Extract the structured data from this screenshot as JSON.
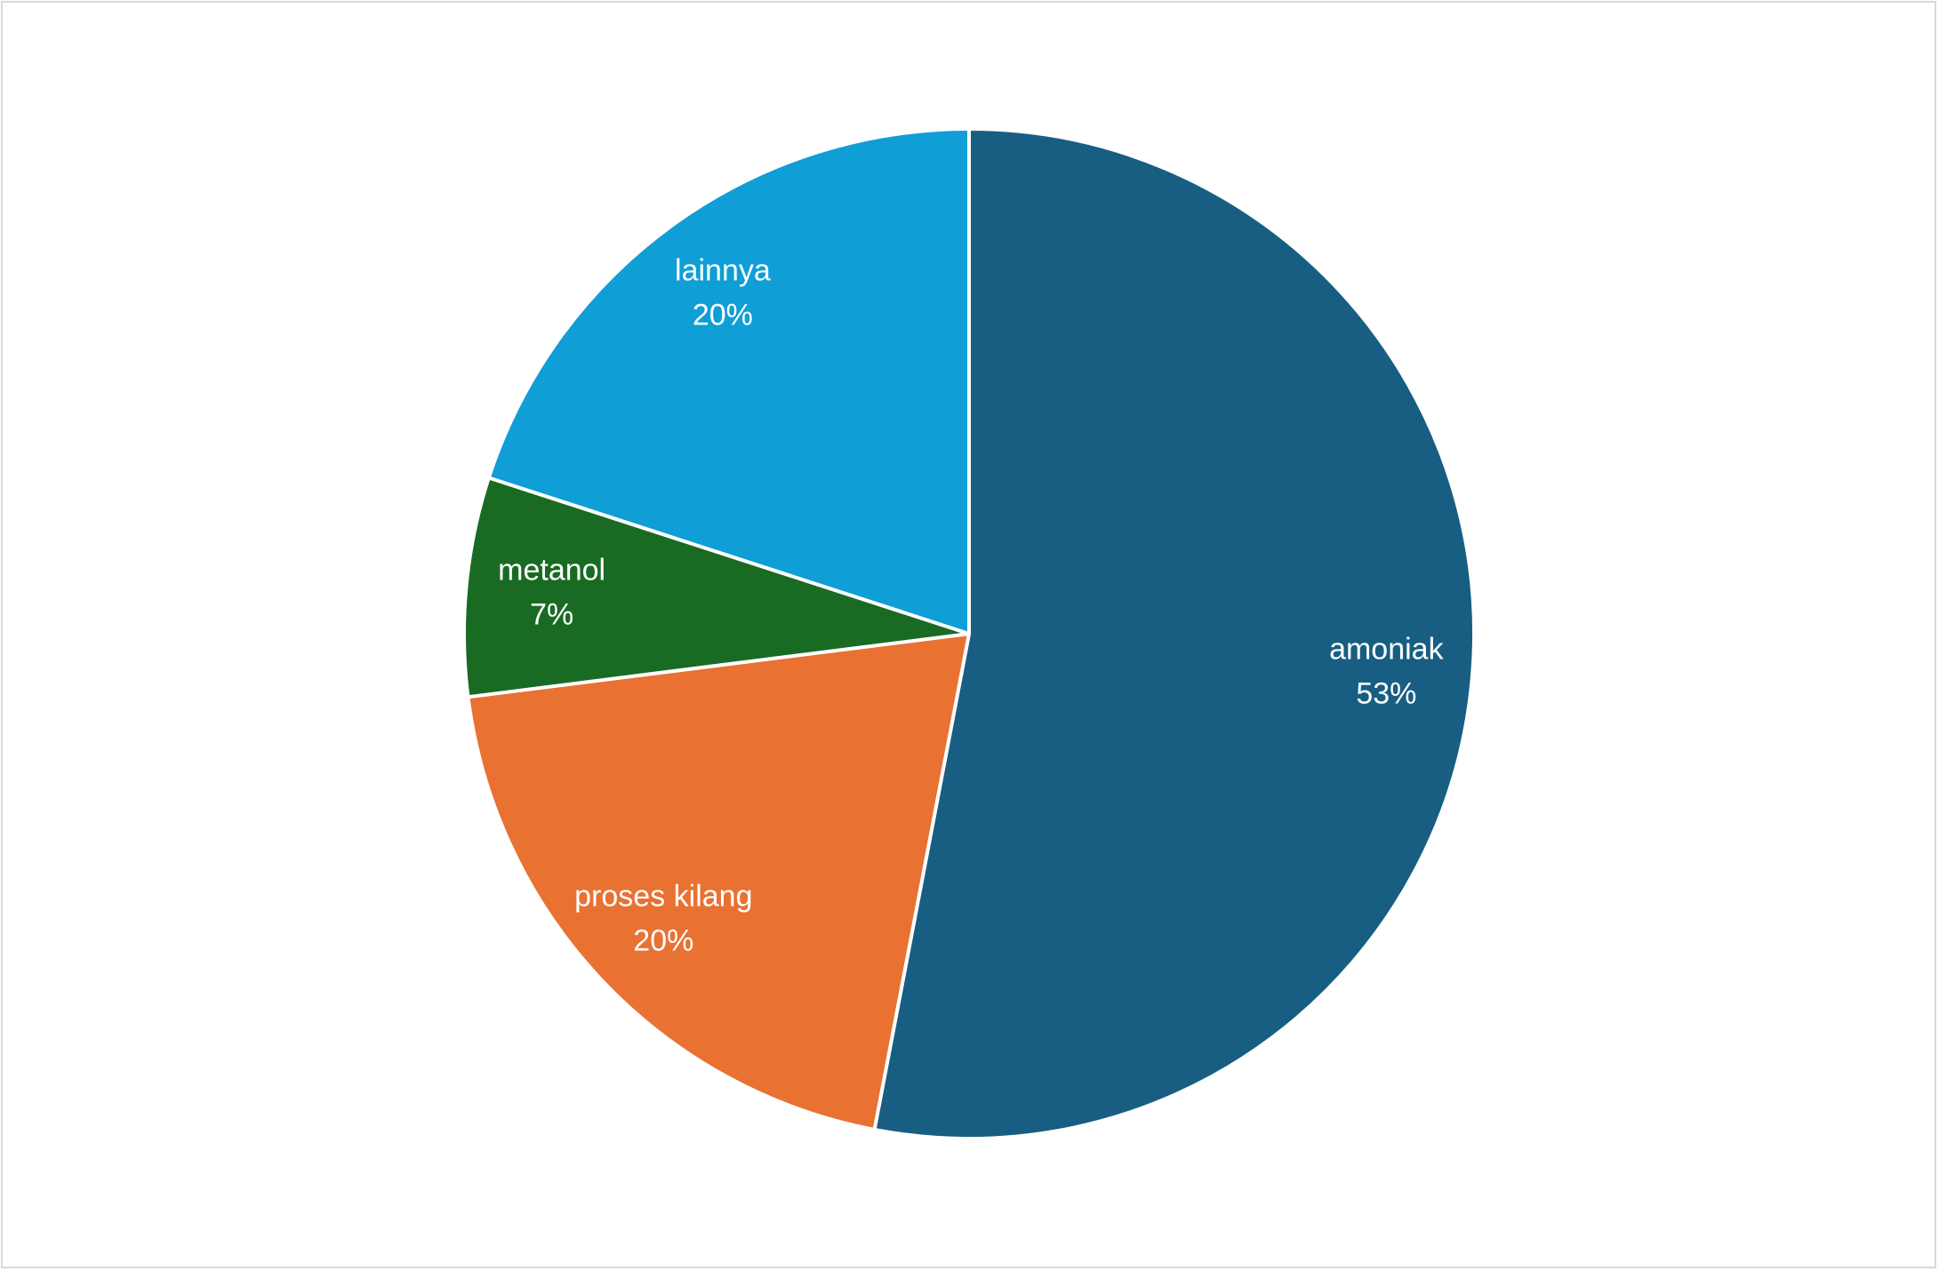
{
  "chart_data": {
    "type": "pie",
    "categories": [
      "amoniak",
      "proses kilang",
      "metanol",
      "lainnya"
    ],
    "values": [
      53,
      20,
      7,
      20
    ],
    "value_labels": [
      "53%",
      "20%",
      "7%",
      "20%"
    ],
    "colors": [
      "#175e82",
      "#e97132",
      "#196b24",
      "#0f9ed5"
    ]
  }
}
